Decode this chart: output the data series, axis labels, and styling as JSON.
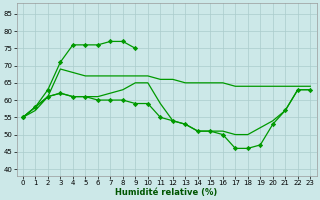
{
  "background_color": "#cce8e8",
  "grid_color": "#aacccc",
  "line_color": "#009900",
  "xlabel": "Humidité relative (%)",
  "yticks": [
    40,
    45,
    50,
    55,
    60,
    65,
    70,
    75,
    80,
    85
  ],
  "xticks": [
    0,
    1,
    2,
    3,
    4,
    5,
    6,
    7,
    8,
    9,
    10,
    11,
    12,
    13,
    14,
    15,
    16,
    17,
    18,
    19,
    20,
    21,
    22,
    23
  ],
  "ylim": [
    38,
    88
  ],
  "xlim": [
    -0.5,
    23.5
  ],
  "line_top_x": [
    0,
    1,
    2,
    3,
    4,
    5,
    6,
    7,
    8,
    9
  ],
  "line_top_y": [
    55,
    58,
    63,
    71,
    76,
    76,
    76,
    77,
    77,
    75
  ],
  "line_bot_x": [
    0,
    1,
    2,
    3,
    4,
    5,
    6,
    7,
    8,
    9,
    10,
    11,
    12,
    13,
    14,
    15,
    16,
    17,
    18,
    19,
    20,
    21,
    22,
    23
  ],
  "line_bot_y": [
    55,
    58,
    61,
    62,
    61,
    61,
    60,
    60,
    60,
    59,
    59,
    55,
    54,
    53,
    51,
    51,
    50,
    46,
    46,
    47,
    53,
    57,
    63,
    63
  ],
  "line_upper_x": [
    0,
    1,
    2,
    3,
    4,
    5,
    6,
    7,
    8,
    9,
    10,
    11,
    12,
    13,
    14,
    15,
    16,
    17,
    18,
    19,
    20,
    21,
    22,
    23
  ],
  "line_upper_y": [
    55,
    57,
    61,
    69,
    68,
    67,
    67,
    67,
    67,
    67,
    67,
    66,
    66,
    65,
    65,
    65,
    65,
    64,
    64,
    64,
    64,
    64,
    64,
    64
  ],
  "line_mid_x": [
    0,
    1,
    2,
    3,
    4,
    5,
    6,
    7,
    8,
    9,
    10,
    11,
    12,
    13,
    14,
    15,
    16,
    17,
    18,
    19,
    20,
    21,
    22,
    23
  ],
  "line_mid_y": [
    55,
    58,
    61,
    62,
    61,
    61,
    61,
    62,
    63,
    65,
    65,
    59,
    54,
    53,
    51,
    51,
    51,
    50,
    50,
    52,
    54,
    57,
    63,
    63
  ]
}
